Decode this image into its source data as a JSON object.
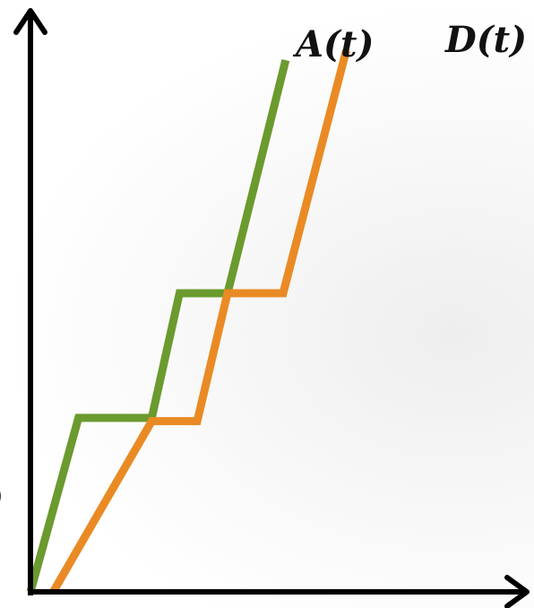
{
  "chart_data": {
    "type": "line",
    "title": "",
    "xlabel": "",
    "ylabel": "",
    "grid": false,
    "axis_ticks": false,
    "xlim": [
      0,
      16
    ],
    "ylim": [
      0,
      17
    ],
    "series": [
      {
        "name": "A(t)",
        "color": "#6b9a2e",
        "points": [
          [
            0,
            0
          ],
          [
            1.9,
            5.3
          ],
          [
            4.8,
            5.3
          ],
          [
            5.9,
            9.1
          ],
          [
            7.8,
            9.1
          ],
          [
            10.1,
            16.2
          ]
        ]
      },
      {
        "name": "D(t)",
        "color": "#ea8a24",
        "points": [
          [
            0.9,
            0
          ],
          [
            4.8,
            5.2
          ],
          [
            6.6,
            5.2
          ],
          [
            7.8,
            9.1
          ],
          [
            10.0,
            9.1
          ],
          [
            12.5,
            16.5
          ]
        ]
      }
    ]
  },
  "fragment_text": ")",
  "colors": {
    "axis": "#000000",
    "series_a": "#6b9a2e",
    "series_d": "#ea8a24"
  }
}
